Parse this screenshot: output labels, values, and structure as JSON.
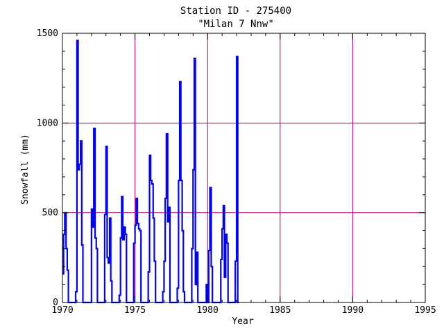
{
  "chart_data": {
    "type": "line",
    "title": "Station ID - 275400",
    "subtitle": "\"Milan 7 Nnw\"",
    "xlabel": "Year",
    "ylabel": "Snowfall (mm)",
    "xlim": [
      1970,
      1995
    ],
    "ylim": [
      0,
      1500
    ],
    "x_ticks": [
      1970,
      1975,
      1980,
      1985,
      1990,
      1995
    ],
    "y_ticks": [
      0,
      500,
      1000,
      1500
    ],
    "grid": true,
    "grid_color": "#b0007a",
    "line_color": "#0000ff",
    "series": [
      {
        "x": [
          1970.0,
          1970.08,
          1970.17,
          1970.25,
          1970.33,
          1970.42,
          1970.5,
          1970.58,
          1970.67,
          1970.75,
          1970.83,
          1970.92,
          1971.0,
          1971.08,
          1971.17,
          1971.25,
          1971.33,
          1971.42,
          1971.5,
          1971.58,
          1971.67,
          1971.75,
          1971.83,
          1971.92,
          1972.0,
          1972.08,
          1972.17,
          1972.25,
          1972.33,
          1972.42,
          1972.5,
          1972.58,
          1972.67,
          1972.75,
          1972.83,
          1972.92,
          1973.0,
          1973.08,
          1973.17,
          1973.25,
          1973.33,
          1973.42,
          1973.5,
          1973.58,
          1973.67,
          1973.75,
          1973.83,
          1973.92,
          1974.0,
          1974.08,
          1974.17,
          1974.25,
          1974.33,
          1974.42,
          1974.5,
          1974.58,
          1974.67,
          1974.75,
          1974.83,
          1974.92,
          1975.0,
          1975.08,
          1975.17,
          1975.25,
          1975.33,
          1975.42,
          1975.5,
          1975.58,
          1975.67,
          1975.75,
          1975.83,
          1975.92,
          1976.0,
          1976.08,
          1976.17,
          1976.25,
          1976.33,
          1976.42,
          1976.5,
          1976.58,
          1976.67,
          1976.75,
          1976.83,
          1976.92,
          1977.0,
          1977.08,
          1977.17,
          1977.25,
          1977.33,
          1977.42,
          1977.5,
          1977.58,
          1977.67,
          1977.75,
          1977.83,
          1977.92,
          1978.0,
          1978.08,
          1978.17,
          1978.25,
          1978.33,
          1978.42,
          1978.5,
          1978.58,
          1978.67,
          1978.75,
          1978.83,
          1978.92,
          1979.0,
          1979.08,
          1979.17,
          1979.25,
          1979.33,
          1979.42,
          1979.5,
          1979.58,
          1979.67,
          1979.75,
          1979.83,
          1979.92,
          1980.0,
          1980.08,
          1980.17,
          1980.25,
          1980.33,
          1980.42,
          1980.5,
          1980.58,
          1980.67,
          1980.75,
          1980.83,
          1980.92,
          1981.0,
          1981.08,
          1981.17,
          1981.25,
          1981.33,
          1981.42,
          1981.5,
          1981.58,
          1981.67,
          1981.75,
          1981.83,
          1981.92,
          1982.0,
          1982.08
        ],
        "y": [
          160,
          380,
          500,
          300,
          180,
          0,
          0,
          0,
          0,
          0,
          0,
          60,
          1460,
          740,
          770,
          900,
          320,
          0,
          0,
          0,
          0,
          0,
          0,
          0,
          520,
          420,
          970,
          360,
          300,
          0,
          0,
          0,
          0,
          0,
          0,
          490,
          870,
          250,
          220,
          470,
          120,
          0,
          0,
          0,
          0,
          0,
          0,
          40,
          360,
          590,
          350,
          420,
          380,
          0,
          0,
          0,
          0,
          0,
          0,
          330,
          430,
          580,
          440,
          410,
          400,
          0,
          0,
          0,
          0,
          0,
          0,
          170,
          820,
          680,
          660,
          470,
          230,
          0,
          0,
          0,
          0,
          0,
          0,
          60,
          230,
          580,
          940,
          450,
          530,
          0,
          0,
          0,
          0,
          0,
          0,
          80,
          680,
          1230,
          680,
          400,
          60,
          0,
          0,
          0,
          0,
          0,
          0,
          300,
          740,
          1360,
          100,
          280,
          0,
          0,
          0,
          0,
          0,
          0,
          0,
          100,
          0,
          290,
          640,
          200,
          0,
          0,
          0,
          0,
          0,
          0,
          0,
          240,
          410,
          540,
          140,
          380,
          330,
          0,
          0,
          0,
          0,
          0,
          0,
          230,
          1370,
          0
        ]
      }
    ]
  }
}
